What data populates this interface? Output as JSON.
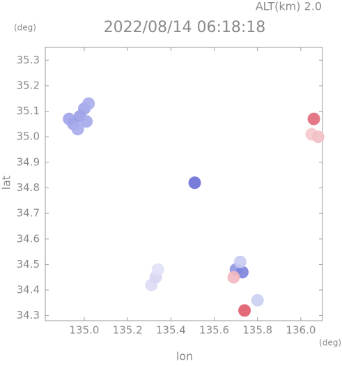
{
  "chart_data": {
    "type": "scatter",
    "title": "2022/08/14 06:18:18",
    "subtitle": "ALT(km) 2.0",
    "y_unit": "(deg)",
    "x_unit": "(deg)",
    "xlabel": "lon",
    "ylabel": "lat",
    "xlim": [
      134.82,
      136.1
    ],
    "ylim": [
      34.28,
      35.35
    ],
    "xticks": [
      {
        "value": 135.0,
        "label": "135.0"
      },
      {
        "value": 135.2,
        "label": "135.2"
      },
      {
        "value": 135.4,
        "label": "135.4"
      },
      {
        "value": 135.6,
        "label": "135.6"
      },
      {
        "value": 135.8,
        "label": "135.8"
      },
      {
        "value": 136.0,
        "label": "136.0"
      }
    ],
    "yticks": [
      {
        "value": 34.3,
        "label": "34.3"
      },
      {
        "value": 34.4,
        "label": "34.4"
      },
      {
        "value": 34.5,
        "label": "34.5"
      },
      {
        "value": 34.6,
        "label": "34.6"
      },
      {
        "value": 34.7,
        "label": "34.7"
      },
      {
        "value": 34.8,
        "label": "34.8"
      },
      {
        "value": 34.9,
        "label": "34.9"
      },
      {
        "value": 35.0,
        "label": "35.0"
      },
      {
        "value": 35.1,
        "label": "35.1"
      },
      {
        "value": 35.2,
        "label": "35.2"
      },
      {
        "value": 35.3,
        "label": "35.3"
      }
    ],
    "x": [
      134.93,
      134.95,
      134.97,
      134.98,
      135.0,
      135.01,
      135.02,
      135.51,
      135.31,
      135.33,
      135.34,
      135.7,
      135.73,
      135.72,
      135.69,
      135.8,
      135.74,
      136.06,
      136.05,
      136.08
    ],
    "y": [
      35.07,
      35.05,
      35.03,
      35.08,
      35.11,
      35.06,
      35.13,
      34.82,
      34.42,
      34.45,
      34.48,
      34.48,
      34.47,
      34.51,
      34.45,
      34.36,
      34.32,
      35.07,
      35.01,
      35.0
    ],
    "colors": [
      "#9fa3e8",
      "#9fa3e8",
      "#a7abec",
      "#9a9ee6",
      "#9fa3e8",
      "#a4a8ea",
      "#a9adec",
      "#6a6fd6",
      "#dcdcf6",
      "#d6d6f4",
      "#e0e0f8",
      "#8f94e2",
      "#7c82dc",
      "#c8caf2",
      "#f2b8c0",
      "#c8d0f2",
      "#e05a6a",
      "#e06a7a",
      "#f6c8cc",
      "#f2c0c6"
    ]
  }
}
